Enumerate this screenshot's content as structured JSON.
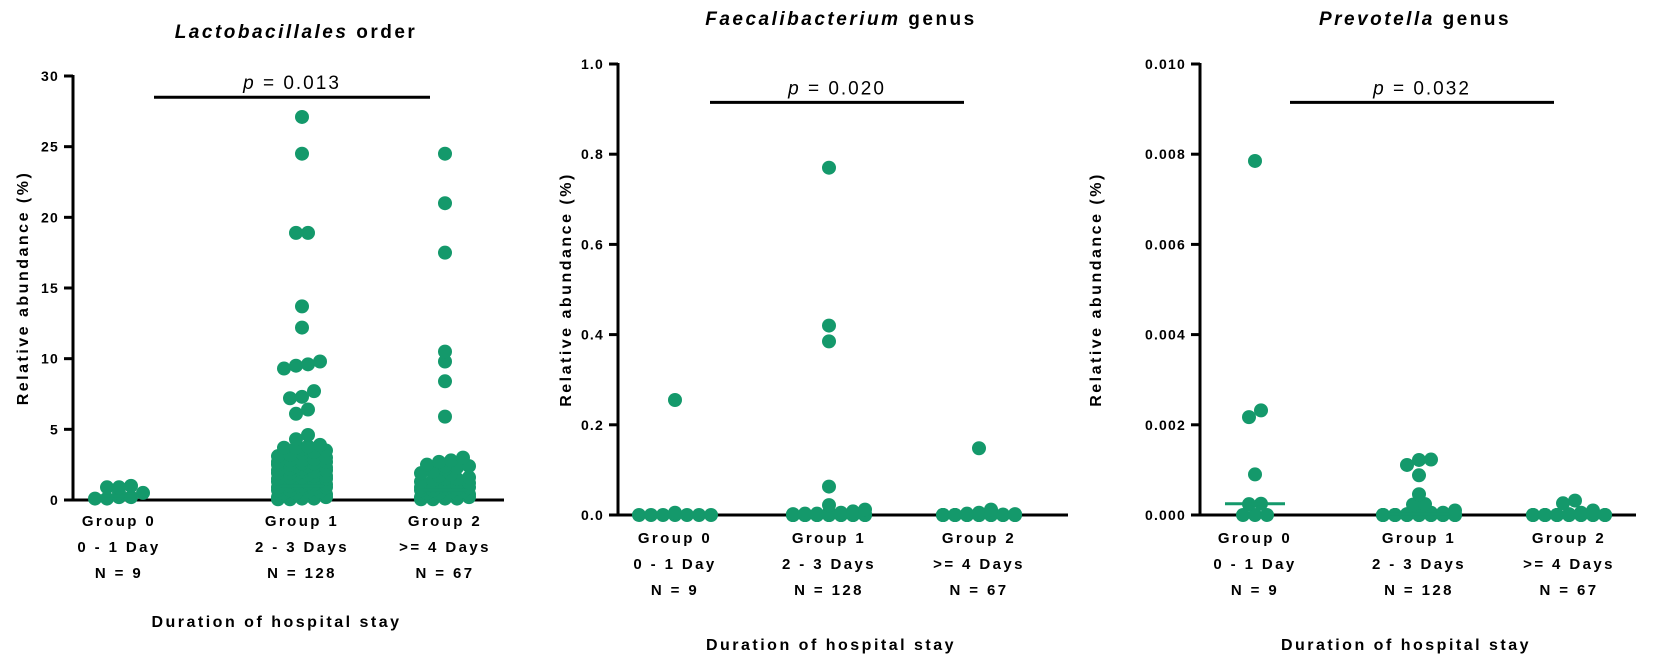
{
  "figure": {
    "accent_color": "#14996b"
  },
  "chart_data": [
    {
      "type": "scatter",
      "title_italic": "Lactobacillales",
      "title_rest": " order",
      "ylabel": "Relative abundance (%)",
      "xlabel": "Duration of hospital stay",
      "ylim": [
        0,
        30
      ],
      "yticks": [
        0,
        5,
        10,
        15,
        20,
        25,
        30
      ],
      "ytick_labels": [
        "0",
        "5",
        "10",
        "15",
        "20",
        "25",
        "30"
      ],
      "groups": [
        {
          "name": "Group 0",
          "range": "0 - 1 Day",
          "n": "N = 9"
        },
        {
          "name": "Group 1",
          "range": "2 - 3 Days",
          "n": "N = 128"
        },
        {
          "name": "Group 2",
          "range": ">= 4 Days",
          "n": "N = 67"
        }
      ],
      "medians": [
        0.3,
        1.0,
        0.7
      ],
      "significance": {
        "label": "p = 0.013",
        "p_value": "0.013",
        "from_group": 0,
        "to_group": 2,
        "y": 28.5
      },
      "series": [
        {
          "group": 0,
          "values": [
            1.0,
            0.9,
            0.5,
            0.2,
            0.1,
            0.1,
            0.2,
            0.5,
            0.9
          ]
        },
        {
          "group": 1,
          "values": [
            27.1,
            24.5,
            18.9,
            18.9,
            13.7,
            12.2,
            9.8,
            9.6,
            9.5,
            9.3,
            7.7,
            7.3,
            7.2,
            6.4,
            6.1,
            4.6,
            4.3,
            3.9,
            3.8,
            3.7,
            3.7,
            3.6,
            3.5,
            3.4,
            3.3,
            3.2,
            3.1,
            3.0,
            2.9,
            2.8,
            2.8,
            2.7,
            2.7,
            2.6,
            2.6,
            2.5,
            2.5,
            2.4,
            2.4,
            2.3,
            2.3,
            2.2,
            2.2,
            2.1,
            2.1,
            2.0,
            2.0,
            1.9,
            1.9,
            1.8,
            1.8,
            1.7,
            1.7,
            1.6,
            1.6,
            1.5,
            1.5,
            1.4,
            1.4,
            1.3,
            1.3,
            1.2,
            1.2,
            1.1,
            1.1,
            1.0,
            1.0,
            0.9,
            0.9,
            0.8,
            0.8,
            0.7,
            0.7,
            0.6,
            0.6,
            0.5,
            0.5,
            0.4,
            0.4,
            0.3,
            0.3,
            0.2,
            0.2,
            0.1,
            0.1,
            0.05,
            0.05
          ]
        },
        {
          "group": 2,
          "values": [
            24.5,
            21.0,
            17.5,
            10.5,
            9.8,
            8.4,
            5.9,
            3.0,
            2.8,
            2.7,
            2.5,
            2.4,
            2.4,
            2.3,
            2.2,
            2.0,
            1.9,
            1.8,
            1.7,
            1.6,
            1.5,
            1.5,
            1.4,
            1.3,
            1.2,
            1.1,
            1.0,
            1.0,
            0.9,
            0.9,
            0.8,
            0.8,
            0.7,
            0.7,
            0.6,
            0.6,
            0.5,
            0.5,
            0.4,
            0.4,
            0.3,
            0.3,
            0.2,
            0.2,
            0.1,
            0.1,
            0.05,
            0.05
          ]
        }
      ]
    },
    {
      "type": "scatter",
      "title_italic": "Faecalibacterium",
      "title_rest": " genus",
      "ylabel": "Relative abundance (%)",
      "xlabel": "Duration of hospital stay",
      "ylim": [
        0,
        1.0
      ],
      "yticks": [
        0,
        0.2,
        0.4,
        0.6,
        0.8,
        1.0
      ],
      "ytick_labels": [
        "0.0",
        "0.2",
        "0.4",
        "0.6",
        "0.8",
        "1.0"
      ],
      "groups": [
        {
          "name": "Group 0",
          "range": "0 - 1 Day",
          "n": "N = 9"
        },
        {
          "name": "Group 1",
          "range": "2 - 3 Days",
          "n": "N = 128"
        },
        {
          "name": "Group 2",
          "range": ">= 4 Days",
          "n": "N = 67"
        }
      ],
      "medians": [
        0,
        0,
        0
      ],
      "significance": {
        "label": "p = 0.020",
        "p_value": "0.020",
        "from_group": 0,
        "to_group": 2,
        "y": 0.915
      },
      "series": [
        {
          "group": 0,
          "values": [
            0.255,
            0.0,
            0.0,
            0.0,
            0.0,
            0.0,
            0.0,
            0.0,
            0.005
          ]
        },
        {
          "group": 1,
          "values": [
            0.77,
            0.42,
            0.385,
            0.063,
            0.022,
            0.012,
            0.008,
            0.005,
            0.005,
            0.003,
            0.003,
            0.002,
            0.002,
            0.001,
            0.001,
            0.0,
            0.0,
            0.0,
            0.0,
            0.0,
            0.0,
            0.0,
            0.0,
            0.0,
            0.0,
            0.0,
            0.0,
            0.0,
            0.0,
            0.0,
            0.0,
            0.0,
            0.0,
            0.0,
            0.0,
            0.0,
            0.0,
            0.0,
            0.0,
            0.0
          ]
        },
        {
          "group": 2,
          "values": [
            0.148,
            0.012,
            0.005,
            0.003,
            0.002,
            0.001,
            0.0,
            0.0,
            0.0,
            0.0,
            0.0,
            0.0,
            0.0,
            0.0,
            0.0,
            0.0,
            0.0,
            0.0,
            0.0,
            0.0,
            0.0,
            0.0,
            0.0,
            0.0,
            0.0,
            0.0,
            0.0,
            0.0,
            0.0,
            0.0,
            0.0,
            0.0
          ]
        }
      ]
    },
    {
      "type": "scatter",
      "title_italic": "Prevotella",
      "title_rest": " genus",
      "ylabel": "Relative abundance (%)",
      "xlabel": "Duration of hospital stay",
      "ylim": [
        0,
        0.01
      ],
      "yticks": [
        0,
        0.002,
        0.004,
        0.006,
        0.008,
        0.01
      ],
      "ytick_labels": [
        "0.000",
        "0.002",
        "0.004",
        "0.006",
        "0.008",
        "0.010"
      ],
      "groups": [
        {
          "name": "Group 0",
          "range": "0 - 1 Day",
          "n": "N = 9"
        },
        {
          "name": "Group 1",
          "range": "2 - 3 Days",
          "n": "N = 128"
        },
        {
          "name": "Group 2",
          "range": ">= 4 Days",
          "n": "N = 67"
        }
      ],
      "medians": [
        0.00025,
        2e-05,
        1e-05
      ],
      "significance": {
        "label": "p = 0.032",
        "p_value": "0.032",
        "from_group": 0,
        "to_group": 2,
        "y": 0.00915
      },
      "series": [
        {
          "group": 0,
          "values": [
            0.00785,
            0.00232,
            0.00217,
            0.0009,
            0.00025,
            0.00024,
            0.0,
            0.0,
            0.0
          ]
        },
        {
          "group": 1,
          "values": [
            0.00123,
            0.00122,
            0.00111,
            0.00088,
            0.00046,
            0.00024,
            0.00023,
            0.0001,
            0.0001,
            5e-05,
            5e-05,
            2e-05,
            2e-05,
            0.0,
            0.0,
            0.0,
            0.0,
            0.0,
            0.0,
            0.0,
            0.0,
            0.0,
            0.0,
            0.0,
            0.0,
            0.0,
            0.0,
            0.0,
            0.0,
            0.0,
            0.0,
            0.0,
            0.0,
            0.0,
            0.0,
            0.0
          ]
        },
        {
          "group": 2,
          "values": [
            0.00032,
            0.00026,
            0.0001,
            5e-05,
            2e-05,
            0.0,
            0.0,
            0.0,
            0.0,
            0.0,
            0.0,
            0.0,
            0.0,
            0.0,
            0.0,
            0.0,
            0.0,
            0.0,
            0.0,
            0.0,
            0.0,
            0.0,
            0.0,
            0.0,
            0.0,
            0.0,
            0.0,
            0.0
          ]
        }
      ]
    }
  ]
}
